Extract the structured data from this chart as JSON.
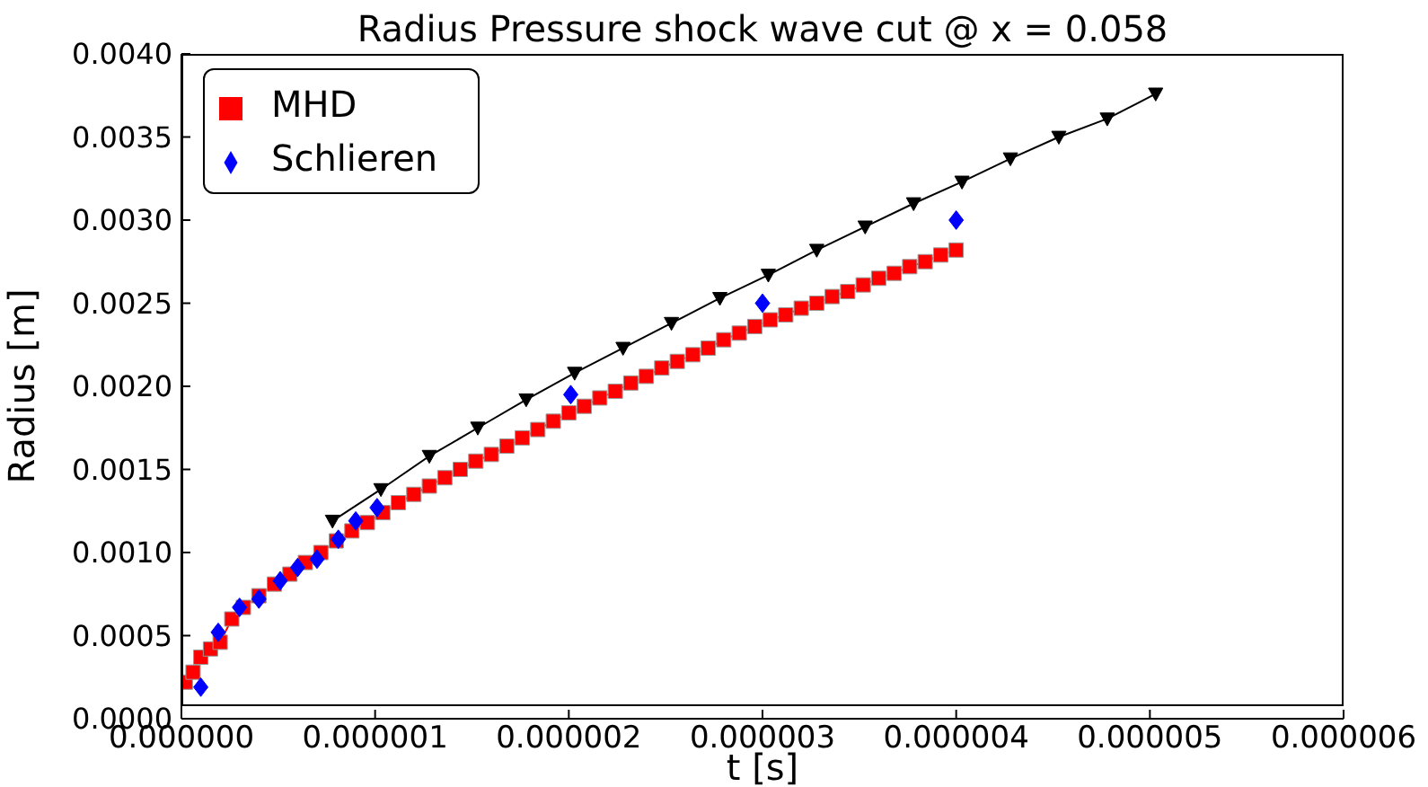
{
  "chart_data": {
    "type": "line",
    "title": "Radius Pressure shock wave cut @ x = 0.058",
    "xlabel": "t [s]",
    "ylabel": "Radius [m]",
    "xlim": [
      0,
      6e-06
    ],
    "xticks": [
      {
        "value": 0,
        "label": "0.000000"
      },
      {
        "value": 1e-06,
        "label": "0.000001"
      },
      {
        "value": 2e-06,
        "label": "0.000002"
      },
      {
        "value": 3e-06,
        "label": "0.000003"
      },
      {
        "value": 4e-06,
        "label": "0.000004"
      },
      {
        "value": 5e-06,
        "label": "0.000005"
      },
      {
        "value": 6e-06,
        "label": "0.000006"
      }
    ],
    "ylim": [
      0,
      0.004
    ],
    "yticks": [
      {
        "value": 0,
        "label": "0.0000"
      },
      {
        "value": 0.0005,
        "label": "0.0005"
      },
      {
        "value": 0.001,
        "label": "0.0010"
      },
      {
        "value": 0.0015,
        "label": "0.0015"
      },
      {
        "value": 0.002,
        "label": "0.0020"
      },
      {
        "value": 0.0025,
        "label": "0.0025"
      },
      {
        "value": 0.003,
        "label": "0.0030"
      },
      {
        "value": 0.0035,
        "label": "0.0035"
      },
      {
        "value": 0.004,
        "label": "0.0040"
      }
    ],
    "grid": false,
    "legend": "top left",
    "series": [
      {
        "name": "MHD",
        "marker": "square",
        "color": "#ff0000",
        "x": [
          2e-08,
          6e-08,
          1e-07,
          1.5e-07,
          2e-07,
          2.6e-07,
          3.2e-07,
          4e-07,
          4.8e-07,
          5.6e-07,
          6.4e-07,
          7.2e-07,
          8e-07,
          8.8e-07,
          9.6e-07,
          1.04e-06,
          1.12e-06,
          1.2e-06,
          1.28e-06,
          1.36e-06,
          1.44e-06,
          1.52e-06,
          1.6e-06,
          1.68e-06,
          1.76e-06,
          1.84e-06,
          1.92e-06,
          2e-06,
          2.08e-06,
          2.16e-06,
          2.24e-06,
          2.32e-06,
          2.4e-06,
          2.48e-06,
          2.56e-06,
          2.64e-06,
          2.72e-06,
          2.8e-06,
          2.88e-06,
          2.96e-06,
          3.04e-06,
          3.12e-06,
          3.2e-06,
          3.28e-06,
          3.36e-06,
          3.44e-06,
          3.52e-06,
          3.6e-06,
          3.68e-06,
          3.76e-06,
          3.84e-06,
          3.92e-06,
          4e-06
        ],
        "values": [
          0.00022,
          0.00028,
          0.00037,
          0.00042,
          0.00046,
          0.0006,
          0.00067,
          0.00074,
          0.00081,
          0.00087,
          0.00094,
          0.001,
          0.00107,
          0.00113,
          0.00118,
          0.00124,
          0.0013,
          0.00135,
          0.0014,
          0.00145,
          0.0015,
          0.00155,
          0.00159,
          0.00164,
          0.00169,
          0.00174,
          0.00179,
          0.00184,
          0.00188,
          0.00193,
          0.00197,
          0.00202,
          0.00206,
          0.00211,
          0.00215,
          0.00219,
          0.00223,
          0.00228,
          0.00232,
          0.00236,
          0.0024,
          0.00243,
          0.00247,
          0.0025,
          0.00254,
          0.00257,
          0.00261,
          0.00265,
          0.00268,
          0.00272,
          0.00275,
          0.00279,
          0.00282
        ]
      },
      {
        "name": "Schlieren",
        "type": "scatter",
        "marker": "diamond",
        "color": "#0000ff",
        "x": [
          1e-07,
          1.9e-07,
          3e-07,
          4e-07,
          5.1e-07,
          6e-07,
          7e-07,
          8.1e-07,
          9e-07,
          1.01e-06,
          2.01e-06,
          3e-06,
          4e-06
        ],
        "values": [
          0.00019,
          0.00052,
          0.00067,
          0.00072,
          0.00083,
          0.00091,
          0.00096,
          0.00108,
          0.00119,
          0.00127,
          0.00195,
          0.0025,
          0.003
        ]
      },
      {
        "marker": "triangle",
        "color": "#000000",
        "x": [
          7.8e-07,
          1.03e-06,
          1.28e-06,
          1.53e-06,
          1.78e-06,
          2.03e-06,
          2.28e-06,
          2.53e-06,
          2.78e-06,
          3.03e-06,
          3.28e-06,
          3.53e-06,
          3.78e-06,
          4.03e-06,
          4.28e-06,
          4.53e-06,
          4.78e-06,
          5.03e-06
        ],
        "values": [
          0.00119,
          0.00138,
          0.00158,
          0.00175,
          0.00192,
          0.00208,
          0.00223,
          0.00238,
          0.00253,
          0.00267,
          0.00282,
          0.00296,
          0.0031,
          0.00323,
          0.00337,
          0.0035,
          0.00361,
          0.00376
        ]
      }
    ]
  }
}
